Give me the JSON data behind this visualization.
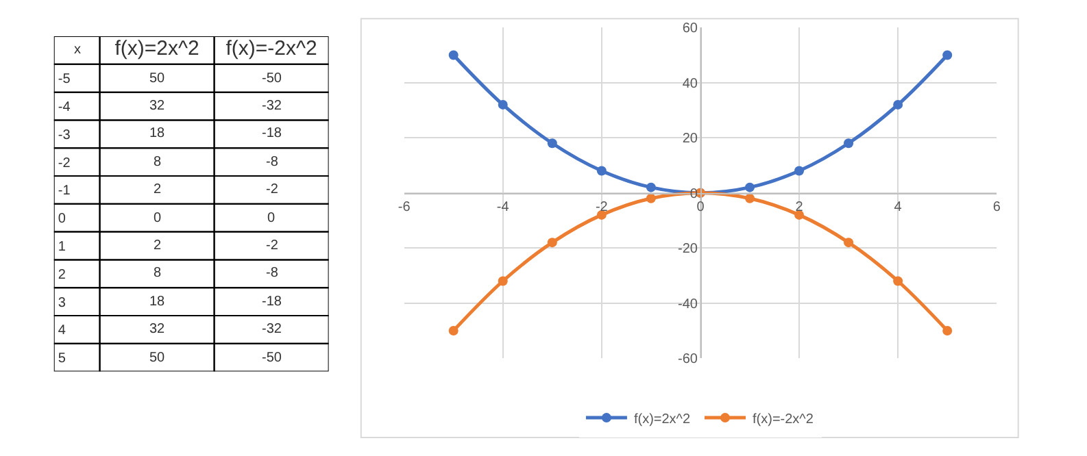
{
  "chart_data": [
    {
      "type": "heatmap",
      "ylabel": "x",
      "categories": [
        "f(x)=2x^2",
        "f(x)=-2x^2"
      ],
      "y_categories": [
        "-5",
        "-4",
        "-3",
        "-2",
        "-1",
        "0",
        "1",
        "2",
        "3",
        "4",
        "5"
      ],
      "cells": [
        [
          50,
          -50
        ],
        [
          32,
          -32
        ],
        [
          18,
          -18
        ],
        [
          8,
          -8
        ],
        [
          2,
          -2
        ],
        [
          0,
          0
        ],
        [
          2,
          -2
        ],
        [
          8,
          -8
        ],
        [
          18,
          -18
        ],
        [
          32,
          -32
        ],
        [
          50,
          -50
        ]
      ],
      "data_labels": true
    },
    {
      "type": "line",
      "x": [
        -5,
        -4,
        -3,
        -2,
        -1,
        0,
        1,
        2,
        3,
        4,
        5
      ],
      "series": [
        {
          "name": "f(x)=2x^2",
          "color": "#4472c4",
          "values": [
            50,
            32,
            18,
            8,
            2,
            0,
            2,
            8,
            18,
            32,
            50
          ]
        },
        {
          "name": "f(x)=-2x^2",
          "color": "#ed7d31",
          "values": [
            -50,
            -32,
            -18,
            -8,
            -2,
            0,
            -2,
            -8,
            -18,
            -32,
            -50
          ]
        }
      ],
      "xlim": [
        -6,
        6
      ],
      "xticks": [
        -6,
        -4,
        -2,
        0,
        2,
        4,
        6
      ],
      "ylim": [
        -60,
        60
      ],
      "yticks": [
        -60,
        -40,
        -20,
        0,
        20,
        40,
        60
      ],
      "grid": true,
      "legend": "bottom",
      "marker": "circle",
      "line_style": "solid"
    }
  ]
}
